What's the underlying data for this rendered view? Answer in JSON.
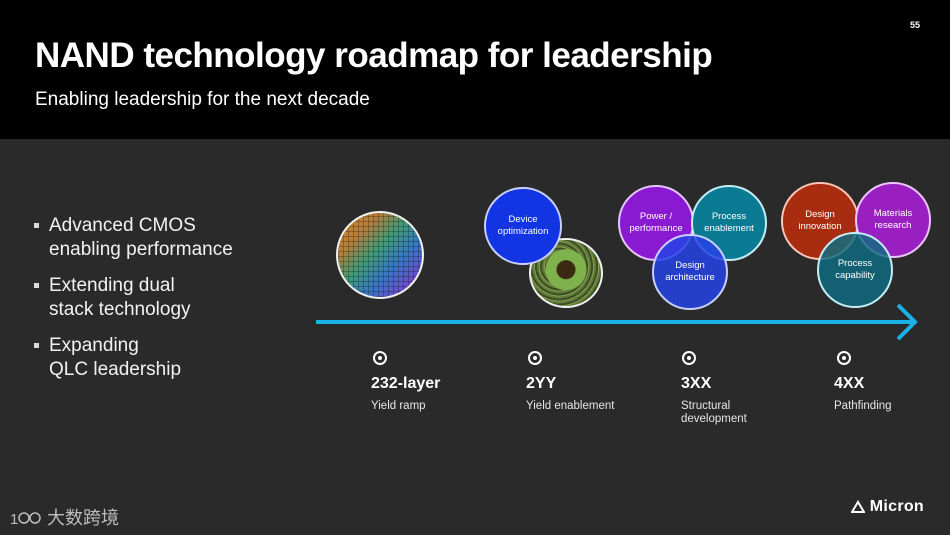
{
  "slide": {
    "title": "NAND technology roadmap for leadership",
    "subtitle": "Enabling leadership for the next decade",
    "page_number": "55"
  },
  "bullets": [
    [
      "Advanced CMOS",
      "enabling performance"
    ],
    [
      "Extending dual",
      "stack technology"
    ],
    [
      "Expanding",
      "QLC leadership"
    ]
  ],
  "circles": {
    "device_optimization": [
      "Device",
      "optimization"
    ],
    "power_performance": [
      "Power /",
      "performance"
    ],
    "process_enablement": [
      "Process",
      "enablement"
    ],
    "design_architecture": [
      "Design",
      "architecture"
    ],
    "design_innovation": [
      "Design",
      "innovation"
    ],
    "materials_research": [
      "Materials",
      "research"
    ],
    "process_capability": [
      "Process",
      "capability"
    ]
  },
  "milestones": [
    {
      "label": "232-layer",
      "desc": [
        "Yield ramp"
      ]
    },
    {
      "label": "2YY",
      "desc": [
        "Yield enablement"
      ]
    },
    {
      "label": "3XX",
      "desc": [
        "Structural",
        "development"
      ]
    },
    {
      "label": "4XX",
      "desc": [
        "Pathfinding"
      ]
    }
  ],
  "colors": {
    "arrow": "#1ab2e6",
    "header_bg": "#000000",
    "body_bg": "#2a2a2a"
  },
  "logos": {
    "watermark": "大数跨境",
    "brand": "Micron"
  }
}
